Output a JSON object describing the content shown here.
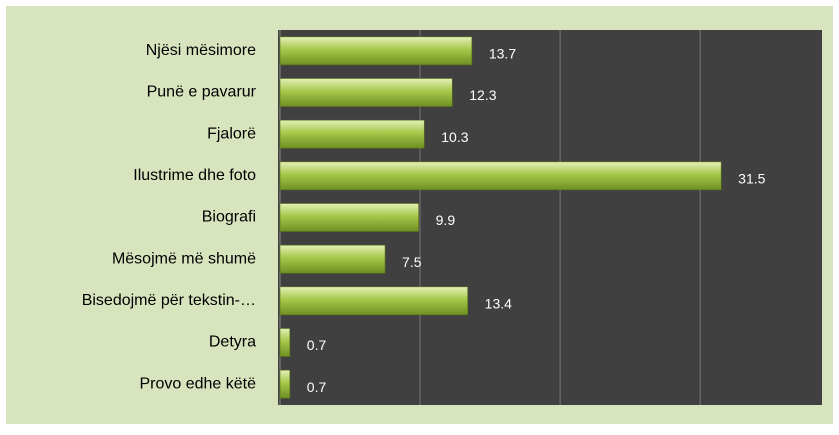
{
  "chart_data": {
    "type": "bar",
    "orientation": "horizontal",
    "categories": [
      "Njësi mësimore",
      "Punë e pavarur",
      "Fjalorë",
      "Ilustrime dhe foto",
      "Biografi",
      "Mësojmë më shumë",
      "Bisedojmë për tekstin-…",
      "Detyra",
      "Provo edhe këtë"
    ],
    "values": [
      13.7,
      12.3,
      10.3,
      31.5,
      9.9,
      7.5,
      13.4,
      0.7,
      0.7
    ],
    "color": "#9bbb3c",
    "xlim": [
      0,
      38.7
    ],
    "xticks": [
      0,
      10,
      20,
      30
    ],
    "grid": true
  }
}
